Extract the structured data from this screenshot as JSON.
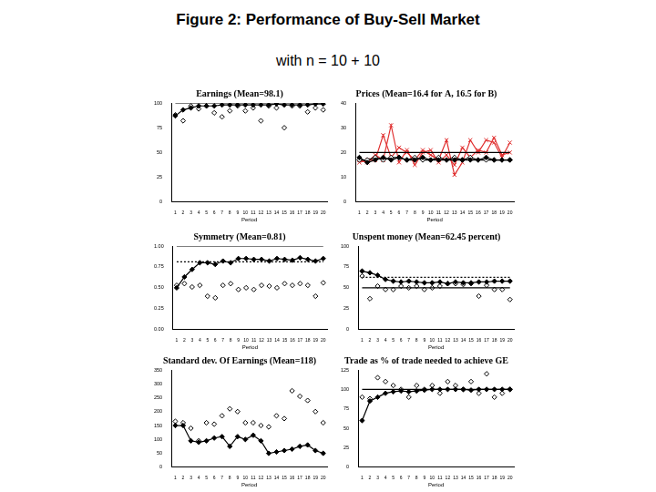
{
  "title": "Figure 2: Performance of Buy-Sell Market",
  "subtitle": "with n = 10 + 10",
  "chart_data": [
    {
      "type": "line",
      "title": "Earnings (Mean=98.1)",
      "x_label": "Period",
      "categories": [
        "1",
        "2",
        "3",
        "4",
        "5",
        "6",
        "7",
        "8",
        "9",
        "10",
        "11",
        "12",
        "13",
        "14",
        "15",
        "16",
        "17",
        "18",
        "19",
        "20"
      ],
      "ylim": [
        0,
        100
      ],
      "yticks": [
        0,
        25,
        50,
        75,
        100
      ],
      "grid": false,
      "reference_lines": [
        {
          "value": 100,
          "color": "#000000",
          "line_style": "solid"
        }
      ],
      "series": [
        {
          "color": "#000000",
          "marker": "diamond",
          "line_style": "solid",
          "values": [
            87,
            93,
            95,
            97,
            97,
            97,
            98,
            98,
            98,
            98,
            98,
            98,
            98,
            99,
            98,
            98,
            98,
            98,
            99,
            99
          ]
        },
        {
          "color": "#000000",
          "marker": "open_diamond",
          "line_style": "none",
          "values": [
            88,
            82,
            97,
            94,
            97,
            90,
            86,
            92,
            97,
            92,
            95,
            82,
            97,
            95,
            75,
            97,
            97,
            91,
            95,
            93
          ]
        }
      ]
    },
    {
      "type": "line",
      "title": "Prices (Mean=16.4 for A, 16.5 for B)",
      "x_label": "Period",
      "categories": [
        "1",
        "2",
        "3",
        "4",
        "5",
        "6",
        "7",
        "8",
        "9",
        "10",
        "11",
        "12",
        "13",
        "14",
        "15",
        "16",
        "17",
        "18",
        "19",
        "20"
      ],
      "ylim": [
        0,
        40
      ],
      "yticks": [
        0,
        10,
        20,
        30,
        40
      ],
      "grid": false,
      "reference_lines": [
        {
          "value": 20,
          "color": "#000000",
          "line_style": "solid"
        }
      ],
      "series": [
        {
          "color": "#000000",
          "marker": "diamond",
          "line_style": "solid",
          "values": [
            18,
            16,
            17,
            18,
            17,
            18,
            17,
            17,
            18,
            17,
            17,
            17,
            17,
            17,
            17,
            17,
            18,
            17,
            17,
            17
          ]
        },
        {
          "color": "#000000",
          "marker": "open_diamond",
          "line_style": "solid",
          "values": [
            17,
            17,
            18,
            17,
            18,
            18,
            17,
            18,
            17,
            17,
            18,
            17,
            18,
            17,
            18,
            17,
            17,
            17,
            17,
            17
          ]
        },
        {
          "color": "#e03030",
          "marker": "cross",
          "line_style": "solid",
          "values": [
            16,
            17,
            17,
            27,
            18,
            22,
            20,
            17,
            21,
            19,
            17,
            25,
            11,
            16,
            25,
            20,
            25,
            24,
            18,
            24
          ]
        },
        {
          "color": "#e03030",
          "marker": "cross",
          "line_style": "solid",
          "values": [
            17,
            16,
            19,
            17,
            31,
            16,
            21,
            15,
            20,
            21,
            16,
            19,
            15,
            22,
            18,
            21,
            20,
            26,
            19,
            20
          ]
        }
      ]
    },
    {
      "type": "line",
      "title": "Symmetry (Mean=0.81)",
      "x_label": "Period",
      "categories": [
        "1",
        "2",
        "3",
        "4",
        "5",
        "6",
        "7",
        "8",
        "9",
        "10",
        "11",
        "12",
        "13",
        "14",
        "15",
        "16",
        "17",
        "18",
        "19",
        "20"
      ],
      "ylim": [
        0,
        1
      ],
      "yticks": [
        {
          "value": 0,
          "label": "0.00"
        },
        {
          "value": 0.25,
          "label": "0.25"
        },
        {
          "value": 0.5,
          "label": "0.50"
        },
        {
          "value": 0.75,
          "label": "0.75"
        },
        {
          "value": 1,
          "label": "1.00"
        }
      ],
      "grid": false,
      "reference_lines": [
        {
          "value": 1,
          "color": "#000000",
          "line_style": "solid"
        },
        {
          "value": 0.81,
          "color": "#000000",
          "line_style": "dotted"
        }
      ],
      "series": [
        {
          "color": "#000000",
          "marker": "diamond",
          "line_style": "solid",
          "values": [
            0.5,
            0.63,
            0.72,
            0.8,
            0.8,
            0.78,
            0.82,
            0.8,
            0.85,
            0.85,
            0.84,
            0.84,
            0.82,
            0.85,
            0.84,
            0.83,
            0.86,
            0.84,
            0.82,
            0.85
          ]
        },
        {
          "color": "#000000",
          "marker": "open_diamond",
          "line_style": "none",
          "values": [
            0.53,
            0.55,
            0.51,
            0.53,
            0.4,
            0.38,
            0.53,
            0.55,
            0.48,
            0.5,
            0.48,
            0.53,
            0.52,
            0.5,
            0.55,
            0.53,
            0.55,
            0.53,
            0.4,
            0.56
          ]
        }
      ]
    },
    {
      "type": "line",
      "title": "Unspent money (Mean=62.45 percent)",
      "x_label": "Period",
      "categories": [
        "1",
        "2",
        "3",
        "4",
        "5",
        "6",
        "7",
        "8",
        "9",
        "10",
        "11",
        "12",
        "13",
        "14",
        "15",
        "16",
        "17",
        "18",
        "19",
        "20"
      ],
      "ylim": [
        0,
        100
      ],
      "yticks": [
        0,
        25,
        50,
        75,
        100
      ],
      "grid": false,
      "reference_lines": [
        {
          "value": 50,
          "color": "#000000",
          "line_style": "solid"
        },
        {
          "value": 62.45,
          "color": "#000000",
          "line_style": "dotted"
        }
      ],
      "series": [
        {
          "color": "#000000",
          "marker": "diamond",
          "line_style": "solid",
          "values": [
            70,
            68,
            65,
            60,
            58,
            57,
            58,
            57,
            56,
            56,
            57,
            55,
            57,
            56,
            56,
            57,
            57,
            58,
            58,
            58
          ]
        },
        {
          "color": "#000000",
          "marker": "open_diamond",
          "line_style": "none",
          "values": [
            64,
            37,
            52,
            48,
            48,
            52,
            50,
            52,
            48,
            50,
            52,
            55,
            55,
            54,
            55,
            40,
            53,
            48,
            48,
            36
          ]
        }
      ]
    },
    {
      "type": "line",
      "title": "Standard dev. Of Earnings (Mean=118)",
      "x_label": "Period",
      "categories": [
        "1",
        "2",
        "3",
        "4",
        "5",
        "6",
        "7",
        "8",
        "9",
        "10",
        "11",
        "12",
        "13",
        "14",
        "15",
        "16",
        "17",
        "18",
        "19",
        "20"
      ],
      "ylim": [
        0,
        350
      ],
      "yticks": [
        0,
        50,
        100,
        150,
        200,
        250,
        300,
        350
      ],
      "grid": false,
      "reference_lines": [],
      "series": [
        {
          "color": "#000000",
          "marker": "diamond",
          "line_style": "solid",
          "values": [
            150,
            150,
            95,
            90,
            95,
            105,
            110,
            75,
            110,
            100,
            115,
            95,
            50,
            55,
            60,
            65,
            75,
            80,
            60,
            50
          ]
        },
        {
          "color": "#000000",
          "marker": "open_diamond",
          "line_style": "none",
          "values": [
            165,
            160,
            140,
            95,
            160,
            155,
            185,
            210,
            200,
            160,
            160,
            150,
            145,
            185,
            175,
            275,
            255,
            240,
            200,
            160
          ]
        }
      ]
    },
    {
      "type": "line",
      "title": "Trade as % of trade needed to achieve GE",
      "x_label": "Period",
      "categories": [
        "1",
        "2",
        "3",
        "4",
        "5",
        "6",
        "7",
        "8",
        "9",
        "10",
        "11",
        "12",
        "13",
        "14",
        "15",
        "16",
        "17",
        "18",
        "19",
        "20"
      ],
      "ylim": [
        0,
        125
      ],
      "yticks": [
        0,
        25,
        50,
        75,
        100,
        125
      ],
      "grid": false,
      "reference_lines": [
        {
          "value": 100,
          "color": "#000000",
          "line_style": "solid"
        }
      ],
      "series": [
        {
          "color": "#000000",
          "marker": "diamond",
          "line_style": "solid",
          "values": [
            60,
            85,
            90,
            95,
            97,
            98,
            97,
            98,
            99,
            100,
            100,
            100,
            100,
            100,
            99,
            100,
            100,
            100,
            100,
            100
          ]
        },
        {
          "color": "#000000",
          "marker": "open_diamond",
          "line_style": "none",
          "values": [
            90,
            88,
            115,
            110,
            105,
            100,
            90,
            105,
            100,
            105,
            95,
            110,
            105,
            100,
            110,
            95,
            120,
            90,
            95,
            100
          ]
        }
      ]
    }
  ]
}
